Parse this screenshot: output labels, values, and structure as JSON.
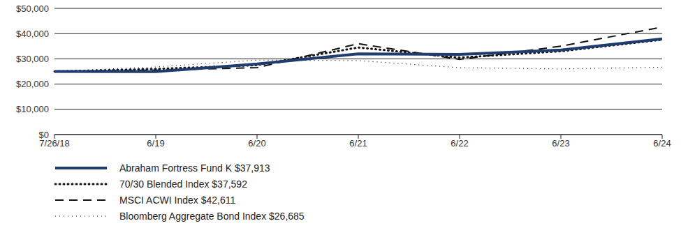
{
  "chart_data": {
    "type": "line",
    "categories": [
      "7/26/18",
      "6/19",
      "6/20",
      "6/21",
      "6/22",
      "6/23",
      "6/24"
    ],
    "series": [
      {
        "name": "Abraham Fortress Fund K $37,913",
        "color": "#1f3c6e",
        "line_style": "solid",
        "values": [
          25000,
          24900,
          28000,
          32000,
          31800,
          33500,
          37913
        ]
      },
      {
        "name": "70/30 Blended Index $37,592",
        "color": "#111111",
        "line_style": "dotted",
        "values": [
          25000,
          26000,
          27500,
          34500,
          30500,
          33000,
          37592
        ]
      },
      {
        "name": "MSCI ACWI Index $42,611",
        "color": "#111111",
        "line_style": "dashed",
        "values": [
          25000,
          25500,
          26500,
          36000,
          29800,
          35000,
          42611
        ]
      },
      {
        "name": "Bloomberg Aggregate Bond Index $26,685",
        "color": "#111111",
        "line_style": "fine_dotted",
        "values": [
          25000,
          26800,
          29500,
          29300,
          26500,
          26000,
          26685
        ]
      }
    ],
    "ylim": [
      0,
      50000
    ],
    "yticks": [
      {
        "value": 0,
        "label": "$0"
      },
      {
        "value": 10000,
        "label": "$10,000"
      },
      {
        "value": 20000,
        "label": "$20,000"
      },
      {
        "value": 30000,
        "label": "$30,000"
      },
      {
        "value": 40000,
        "label": "$40,000"
      },
      {
        "value": 50000,
        "label": "$50,000"
      }
    ],
    "grid": true
  }
}
